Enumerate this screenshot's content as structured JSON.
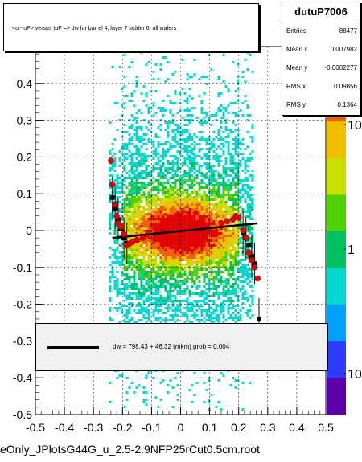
{
  "chart_data": {
    "type": "heatmap",
    "title": "<u - uP>       versus  tuP =>  dw for barrel 4, layer 7 ladder 6, all wafers",
    "xlabel": "",
    "ylabel": "",
    "xlim": [
      -0.5,
      0.5
    ],
    "ylim": [
      -0.5,
      0.5
    ],
    "x_ticks": [
      "-0.5",
      "-0.4",
      "-0.3",
      "-0.2",
      "-0.1",
      "0",
      "0.1",
      "0.2",
      "0.3",
      "0.4",
      "0.5"
    ],
    "y_ticks": [
      "-0.5",
      "-0.4",
      "-0.3",
      "-0.2",
      "-0.1",
      "0",
      "0.1",
      "0.2",
      "0.3",
      "0.4"
    ],
    "z_ticks": [
      "10",
      "1",
      "10"
    ],
    "z_scale": "log",
    "palette": [
      "#5b00a8",
      "#2d3cff",
      "#00a0ff",
      "#00d8d0",
      "#00c060",
      "#50d000",
      "#c8e000",
      "#f0c000",
      "#f06000",
      "#e00000"
    ],
    "profile_points": [
      {
        "x": -0.235,
        "y": 0.09
      },
      {
        "x": -0.225,
        "y": 0.06
      },
      {
        "x": -0.215,
        "y": 0.03
      },
      {
        "x": -0.205,
        "y": 0.005
      },
      {
        "x": -0.195,
        "y": -0.02
      },
      {
        "x": -0.185,
        "y": -0.035
      },
      {
        "x": 0.215,
        "y": -0.005
      },
      {
        "x": 0.225,
        "y": -0.02
      },
      {
        "x": 0.235,
        "y": -0.04
      },
      {
        "x": 0.245,
        "y": -0.07
      },
      {
        "x": 0.255,
        "y": -0.09
      },
      {
        "x": 0.27,
        "y": -0.24
      }
    ],
    "red_points": [
      {
        "x": -0.24,
        "y": 0.19
      },
      {
        "x": -0.235,
        "y": 0.125
      },
      {
        "x": -0.225,
        "y": 0.07
      },
      {
        "x": -0.22,
        "y": 0.04
      },
      {
        "x": -0.215,
        "y": 0.02
      },
      {
        "x": -0.205,
        "y": 0.01
      },
      {
        "x": -0.195,
        "y": -0.01
      },
      {
        "x": -0.185,
        "y": -0.04
      },
      {
        "x": -0.175,
        "y": -0.035
      },
      {
        "x": -0.165,
        "y": -0.03
      },
      {
        "x": -0.15,
        "y": -0.025
      },
      {
        "x": -0.13,
        "y": -0.02
      },
      {
        "x": 0.14,
        "y": 0.02
      },
      {
        "x": 0.16,
        "y": 0.025
      },
      {
        "x": 0.18,
        "y": 0.03
      },
      {
        "x": 0.19,
        "y": 0.04
      },
      {
        "x": 0.2,
        "y": 0.035
      },
      {
        "x": 0.215,
        "y": 0.0
      },
      {
        "x": 0.225,
        "y": -0.02
      },
      {
        "x": 0.235,
        "y": -0.06
      },
      {
        "x": 0.245,
        "y": -0.08
      },
      {
        "x": 0.255,
        "y": -0.1
      },
      {
        "x": 0.265,
        "y": -0.13
      }
    ],
    "fit_line": {
      "x": [
        -0.235,
        0.265
      ],
      "y": [
        -0.02,
        0.02
      ]
    }
  },
  "title_box": {
    "text": "<u - uP>       versus  tuP =>  dw for barrel 4, layer 7 ladder 6, all wafers"
  },
  "stats": {
    "name": "dutuP7006",
    "rows": [
      {
        "key": "Entries",
        "value": "88477"
      },
      {
        "key": "Mean x",
        "value": "0.007982"
      },
      {
        "key": "Mean y",
        "value": "-0.0002277"
      },
      {
        "key": "RMS x",
        "value": "0.09856"
      },
      {
        "key": "RMS y",
        "value": "0.1364"
      }
    ]
  },
  "fit_box": {
    "text": "dw =  798.43 + 46.32 (mkm) prob = 0.004"
  },
  "file_label": "eOnly_JPlotsG44G_u_2.5-2.9NFP25rCut0.5cm.root"
}
